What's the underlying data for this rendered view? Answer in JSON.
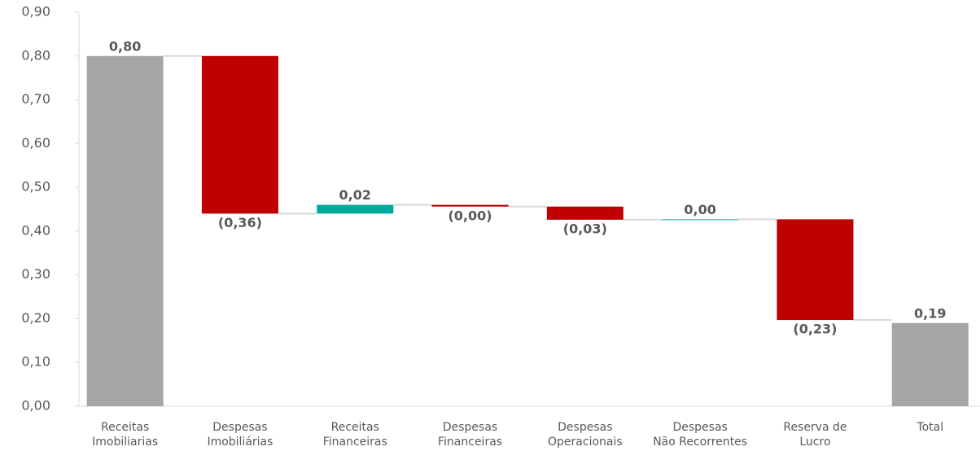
{
  "chart_data": {
    "type": "waterfall",
    "categories": [
      [
        "Receitas",
        "Imobiliarias"
      ],
      [
        "Despesas",
        "Imobiliárias"
      ],
      [
        "Receitas",
        "Financeiras"
      ],
      [
        "Despesas",
        "Financeiras"
      ],
      [
        "Despesas",
        "Operacionais"
      ],
      [
        "Despesas",
        "Não Recorrentes"
      ],
      [
        "Reserva de",
        "Lucro"
      ],
      [
        "Total"
      ]
    ],
    "values": [
      0.8,
      -0.36,
      0.02,
      -0.004,
      -0.03,
      0.001,
      -0.23,
      0.19
    ],
    "value_labels": [
      "0,80",
      "(0,36)",
      "0,02",
      "(0,00)",
      "(0,03)",
      "0,00",
      "(0,23)",
      "0,19"
    ],
    "measure": [
      "absolute",
      "relative",
      "relative",
      "relative",
      "relative",
      "relative",
      "relative",
      "total"
    ],
    "colors": {
      "absolute": "#a6a6a6",
      "total": "#a6a6a6",
      "increase": "#00a99d",
      "decrease": "#c00000"
    },
    "ylim": [
      0,
      0.9
    ],
    "yticks": [
      {
        "value": 0,
        "label": "0,00"
      },
      {
        "value": 0.1,
        "label": "0,10"
      },
      {
        "value": 0.2,
        "label": "0,20"
      },
      {
        "value": 0.3,
        "label": "0,30"
      },
      {
        "value": 0.4,
        "label": "0,40"
      },
      {
        "value": 0.5,
        "label": "0,50"
      },
      {
        "value": 0.6,
        "label": "0,60"
      },
      {
        "value": 0.7,
        "label": "0,70"
      },
      {
        "value": 0.8,
        "label": "0,80"
      },
      {
        "value": 0.9,
        "label": "0,90"
      }
    ]
  }
}
